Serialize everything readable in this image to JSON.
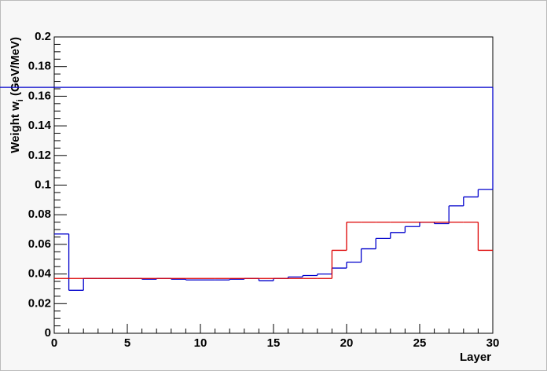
{
  "chart_data": {
    "type": "histogram",
    "xlabel": "Layer",
    "ylabel": [
      "Weight w",
      "i",
      " (GeV/MeV)"
    ],
    "bins": [
      0,
      1,
      2,
      3,
      4,
      5,
      6,
      7,
      8,
      9,
      10,
      11,
      12,
      13,
      14,
      15,
      16,
      17,
      18,
      19,
      20,
      21,
      22,
      23,
      24,
      25,
      26,
      27,
      28,
      29,
      30
    ],
    "series": [
      {
        "color": "#0000cc",
        "values": [
          0.067,
          0.029,
          0.037,
          0.037,
          0.037,
          0.037,
          0.0365,
          0.037,
          0.0365,
          0.036,
          0.036,
          0.036,
          0.0365,
          0.037,
          0.0355,
          0.037,
          0.038,
          0.039,
          0.04,
          0.044,
          0.048,
          0.057,
          0.064,
          0.068,
          0.072,
          0.075,
          0.074,
          0.086,
          0.092,
          0.097,
          0.166
        ]
      },
      {
        "color": "#dd0000",
        "values": [
          0.037,
          0.037,
          0.037,
          0.037,
          0.037,
          0.037,
          0.037,
          0.037,
          0.037,
          0.037,
          0.037,
          0.037,
          0.037,
          0.037,
          0.037,
          0.037,
          0.037,
          0.037,
          0.037,
          0.056,
          0.075,
          0.075,
          0.075,
          0.075,
          0.075,
          0.075,
          0.075,
          0.075,
          0.075,
          0.056
        ]
      }
    ],
    "xlim": [
      0,
      30
    ],
    "xticks": [
      0,
      5,
      10,
      15,
      20,
      25,
      30
    ],
    "ylim": [
      0,
      0.2
    ],
    "yticks": [
      0,
      0.02,
      0.04,
      0.06,
      0.08,
      0.1,
      0.12,
      0.14,
      0.16,
      0.18,
      0.2
    ]
  }
}
